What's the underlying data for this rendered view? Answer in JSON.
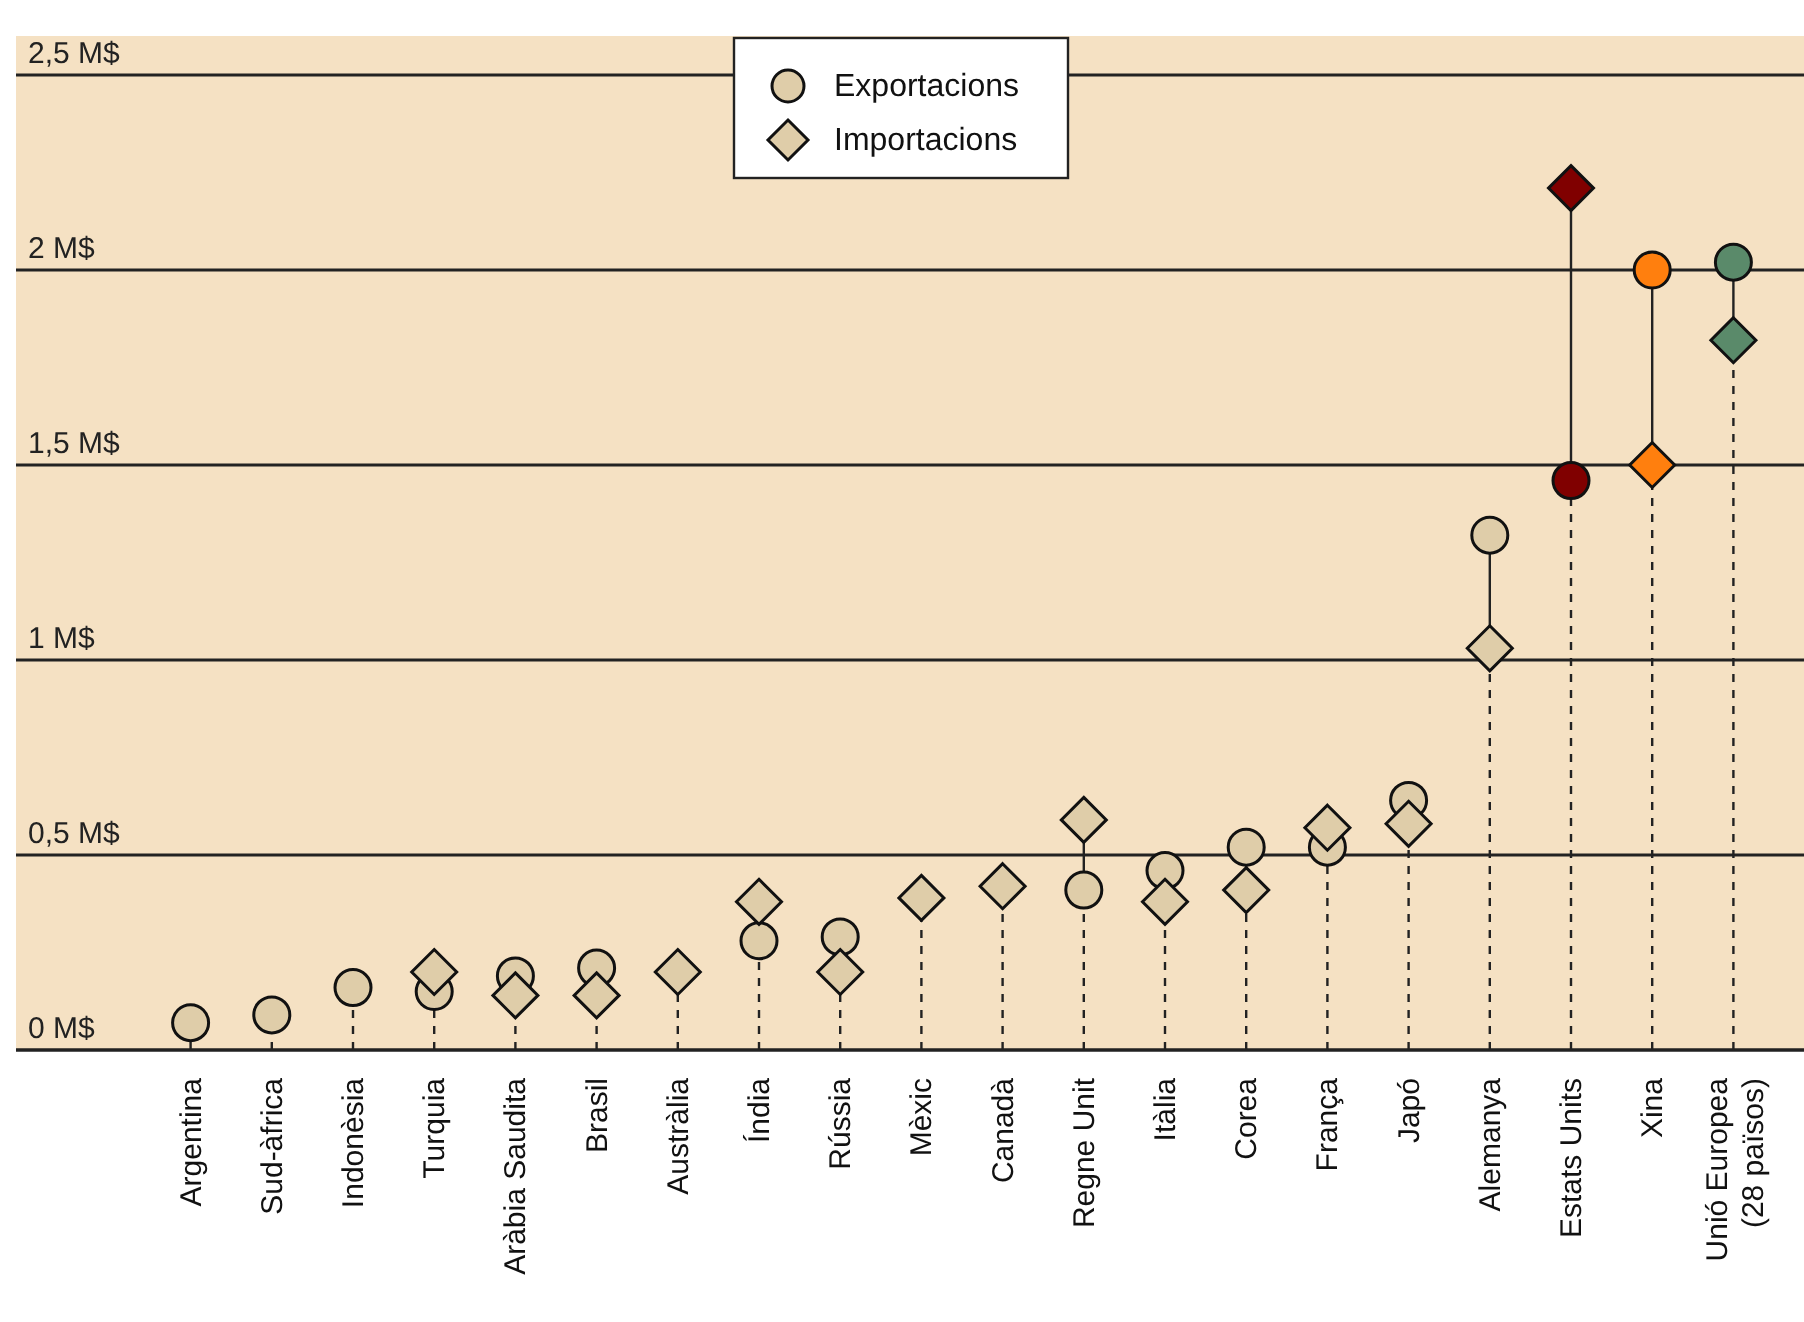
{
  "chart_data": {
    "type": "lollipop",
    "categories": [
      "Argentina",
      "Sud-àfrica",
      "Indonèsia",
      "Turquia",
      "Aràbia Saudita",
      "Brasil",
      "Austràlia",
      "Índia",
      "Rússia",
      "Mèxic",
      "Canadà",
      "Regne Unit",
      "Itàlia",
      "Corea",
      "França",
      "Japó",
      "Alemanya",
      "Estats Units",
      "Xina",
      "Unió Europea\n(28 països)"
    ],
    "series": [
      {
        "name": "Exportacions",
        "marker": "circle",
        "color": "#dfcda9",
        "colors": [
          "#dfcda9",
          "#dfcda9",
          "#dfcda9",
          "#dfcda9",
          "#dfcda9",
          "#dfcda9",
          null,
          "#dfcda9",
          "#dfcda9",
          null,
          null,
          "#dfcda9",
          "#dfcda9",
          "#dfcda9",
          "#dfcda9",
          "#dfcda9",
          "#dfcda9",
          "#800000",
          "#ff7f0e",
          "#5a8a6a"
        ],
        "values": [
          0.07,
          0.09,
          0.16,
          0.15,
          0.19,
          0.21,
          null,
          0.28,
          0.29,
          null,
          null,
          0.41,
          0.46,
          0.52,
          0.52,
          0.64,
          1.32,
          1.46,
          2.0,
          2.02
        ]
      },
      {
        "name": "Importacions",
        "marker": "diamond",
        "color": "#dfcda9",
        "colors": [
          null,
          null,
          null,
          "#dfcda9",
          "#dfcda9",
          "#dfcda9",
          "#dfcda9",
          "#dfcda9",
          "#dfcda9",
          "#dfcda9",
          "#dfcda9",
          "#dfcda9",
          "#dfcda9",
          "#dfcda9",
          "#dfcda9",
          "#dfcda9",
          "#dfcda9",
          "#800000",
          "#ff7f0e",
          "#5a8a6a"
        ],
        "values": [
          null,
          null,
          null,
          0.2,
          0.14,
          0.14,
          0.2,
          0.38,
          0.2,
          0.39,
          0.42,
          0.59,
          0.38,
          0.41,
          0.57,
          0.58,
          1.03,
          2.21,
          1.5,
          1.82
        ]
      }
    ],
    "ylim": [
      0,
      2.6
    ],
    "yticks": [
      {
        "value": 0,
        "label": "0 M$"
      },
      {
        "value": 0.5,
        "label": "0,5 M$"
      },
      {
        "value": 1,
        "label": "1 M$"
      },
      {
        "value": 1.5,
        "label": "1,5 M$"
      },
      {
        "value": 2,
        "label": "2 M$"
      },
      {
        "value": 2.5,
        "label": "2,5 M$"
      }
    ],
    "grid": "y",
    "legend": "top",
    "line_style": "dashed"
  }
}
